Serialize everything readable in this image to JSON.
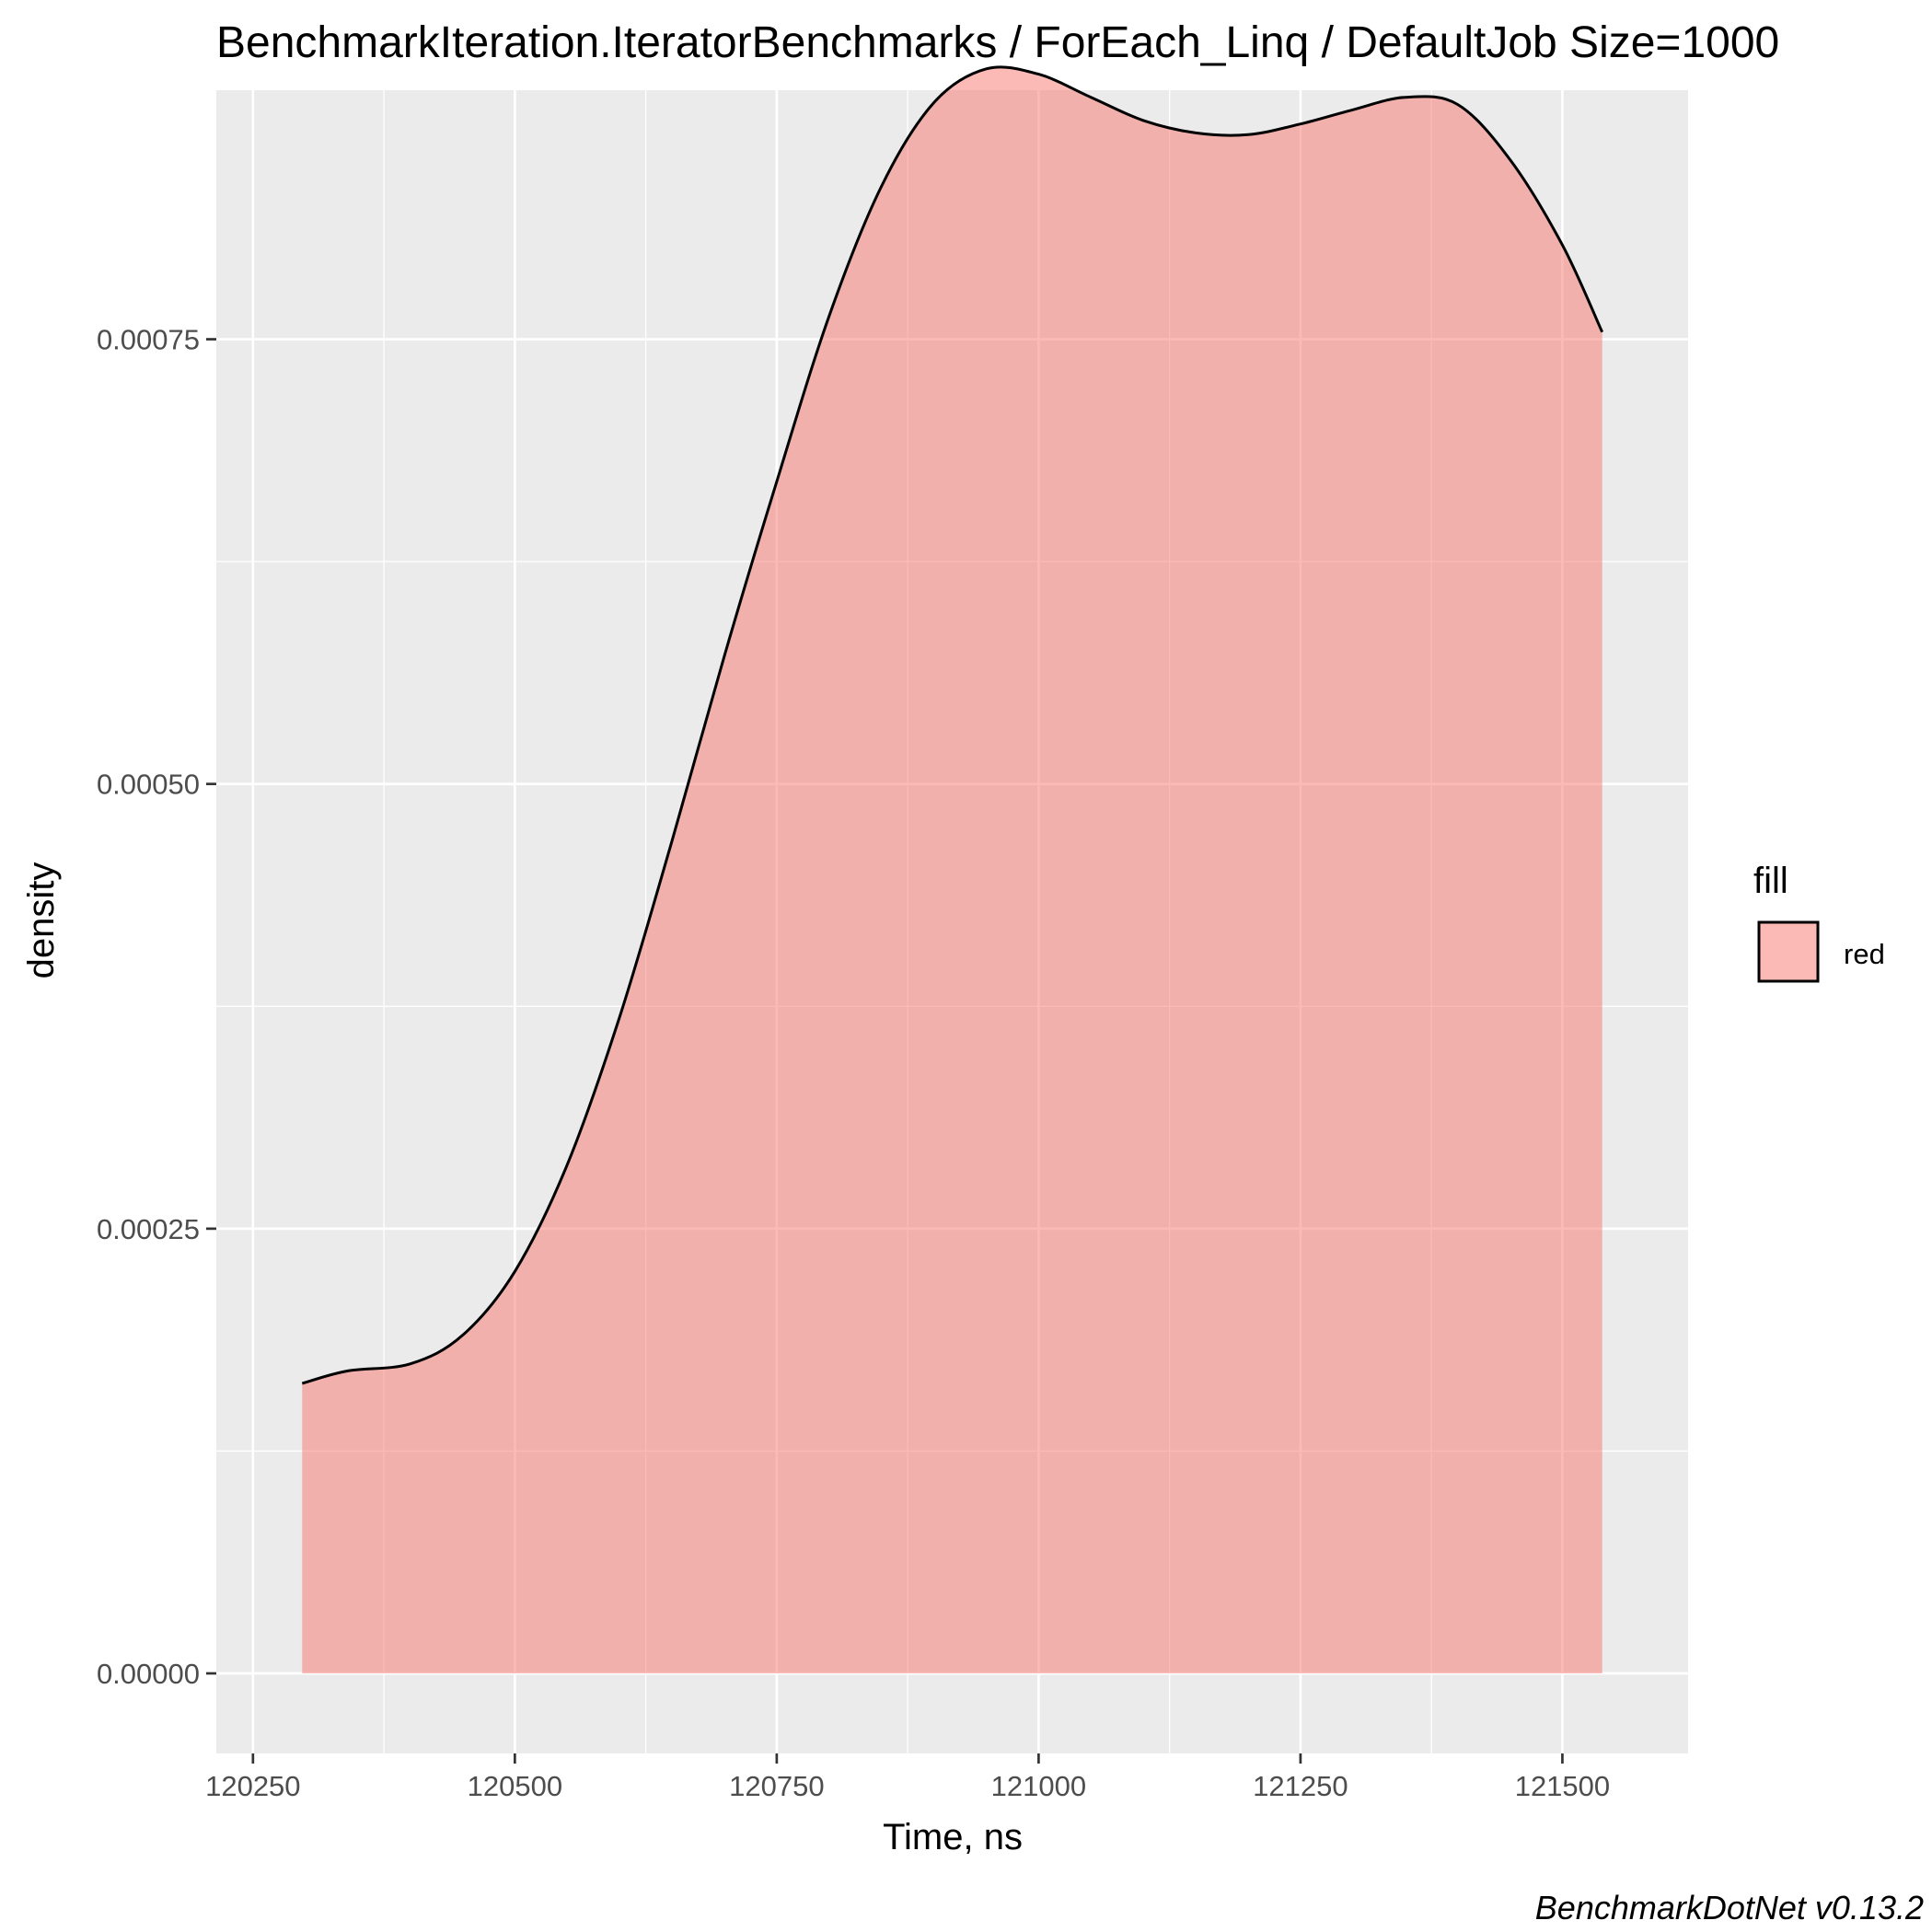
{
  "chart_data": {
    "type": "area",
    "title": "BenchmarkIteration.IteratorBenchmarks / ForEach_Linq / DefaultJob Size=1000",
    "xlabel": "Time, ns",
    "ylabel": "density",
    "xlim": [
      120215,
      121620
    ],
    "ylim": [
      -4.5e-05,
      0.00089
    ],
    "x_ticks": [
      {
        "value": 120250,
        "label": "120250"
      },
      {
        "value": 120500,
        "label": "120500"
      },
      {
        "value": 120750,
        "label": "120750"
      },
      {
        "value": 121000,
        "label": "121000"
      },
      {
        "value": 121250,
        "label": "121250"
      },
      {
        "value": 121500,
        "label": "121500"
      }
    ],
    "y_ticks": [
      {
        "value": 0,
        "label": "0.00000"
      },
      {
        "value": 0.00025,
        "label": "0.00025"
      },
      {
        "value": 0.0005,
        "label": "0.00050"
      },
      {
        "value": 0.00075,
        "label": "0.00075"
      }
    ],
    "grid": true,
    "legend": {
      "title": "fill",
      "position": "right",
      "entries": [
        {
          "label": "red",
          "color": "#f8766d"
        }
      ]
    },
    "series": [
      {
        "name": "red",
        "fill": "#f8766d",
        "fill_opacity": 0.5,
        "stroke": "#000000",
        "x": [
          120297,
          120340,
          120400,
          120450,
          120500,
          120550,
          120600,
          120650,
          120700,
          120750,
          120800,
          120850,
          120900,
          120950,
          121000,
          121050,
          121100,
          121150,
          121200,
          121250,
          121300,
          121350,
          121400,
          121450,
          121500,
          121538
        ],
        "y": [
          0.000163,
          0.00017,
          0.000174,
          0.00019,
          0.000226,
          0.000286,
          0.000369,
          0.000468,
          0.000572,
          0.00067,
          0.000763,
          0.000836,
          0.000883,
          0.000902,
          0.000899,
          0.000886,
          0.000873,
          0.000866,
          0.000865,
          0.000871,
          0.000879,
          0.000886,
          0.000882,
          0.000851,
          0.000803,
          0.000754
        ]
      }
    ],
    "caption": "BenchmarkDotNet v0.13.2"
  }
}
